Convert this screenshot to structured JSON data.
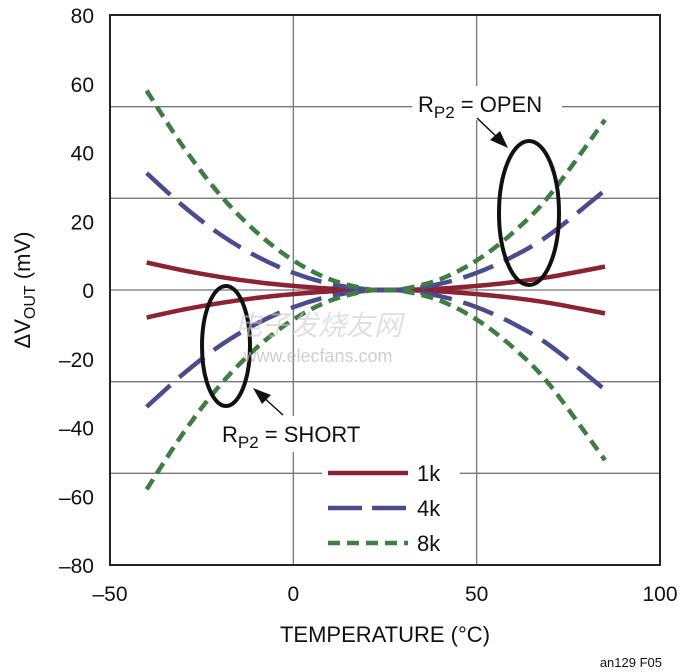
{
  "chart_data": {
    "type": "line",
    "xlabel": "TEMPERATURE (°C)",
    "ylabel_prefix": "ΔV",
    "ylabel_sub": "OUT",
    "ylabel_suffix": " (mV)",
    "xlim": [
      -50,
      100
    ],
    "ylim": [
      -80,
      80
    ],
    "xticks": [
      -50,
      0,
      50,
      100
    ],
    "xtick_labels": [
      "–50",
      "0",
      "50",
      "100"
    ],
    "yticks": [
      80,
      60,
      40,
      20,
      0,
      -20,
      -40,
      -60,
      -80
    ],
    "ytick_labels": [
      "80",
      "60",
      "40",
      "20",
      "0",
      "–20",
      "–40",
      "–60",
      "–80"
    ],
    "grid": true,
    "legend_placement": "bottom-center",
    "x": [
      -40,
      -30,
      -20,
      -10,
      0,
      10,
      20,
      25,
      30,
      40,
      50,
      60,
      70,
      85
    ],
    "series": [
      {
        "name": "1k",
        "color": "#8b2332",
        "style": "solid",
        "condition": "open",
        "values": [
          8.0,
          5.7,
          3.8,
          2.3,
          1.2,
          0.4,
          0.05,
          0,
          0.05,
          0.4,
          1.2,
          2.3,
          3.8,
          6.8
        ]
      },
      {
        "name": "1k",
        "color": "#8b2332",
        "style": "solid",
        "condition": "short",
        "values": [
          -8.0,
          -5.7,
          -3.8,
          -2.3,
          -1.2,
          -0.4,
          -0.05,
          0,
          -0.05,
          -0.4,
          -1.2,
          -2.3,
          -3.8,
          -6.8
        ]
      },
      {
        "name": "4k",
        "color": "#4b4b8f",
        "style": "long-dash",
        "condition": "open",
        "values": [
          34,
          24.4,
          16.2,
          9.8,
          5.0,
          1.8,
          0.2,
          0,
          0.2,
          1.8,
          5.0,
          9.8,
          16.2,
          29
        ]
      },
      {
        "name": "4k",
        "color": "#4b4b8f",
        "style": "long-dash",
        "condition": "short",
        "values": [
          -34,
          -24.4,
          -16.2,
          -9.8,
          -5.0,
          -1.8,
          -0.2,
          0,
          -0.2,
          -1.8,
          -5.0,
          -9.8,
          -16.2,
          -29
        ]
      },
      {
        "name": "8k",
        "color": "#3f7d45",
        "style": "short-dash",
        "condition": "open",
        "values": [
          58,
          41.6,
          27.7,
          16.8,
          8.6,
          3.1,
          0.3,
          0,
          0.3,
          3.1,
          8.6,
          16.8,
          27.7,
          49.5
        ]
      },
      {
        "name": "8k",
        "color": "#3f7d45",
        "style": "short-dash",
        "condition": "short",
        "values": [
          -58,
          -41.6,
          -27.7,
          -16.8,
          -8.6,
          -3.1,
          -0.3,
          0,
          -0.3,
          -3.1,
          -8.6,
          -16.8,
          -27.7,
          -49.5
        ]
      }
    ],
    "legend": [
      "1k",
      "4k",
      "8k"
    ],
    "annotations": {
      "open": {
        "r": "R",
        "sub": "P2",
        "rest": " = OPEN"
      },
      "short": {
        "r": "R",
        "sub": "P2",
        "rest": " = SHORT"
      }
    },
    "figure_id": "an129 F05"
  },
  "watermark": {
    "cn": "电子发烧友网",
    "url": "www.elecfans.com"
  }
}
